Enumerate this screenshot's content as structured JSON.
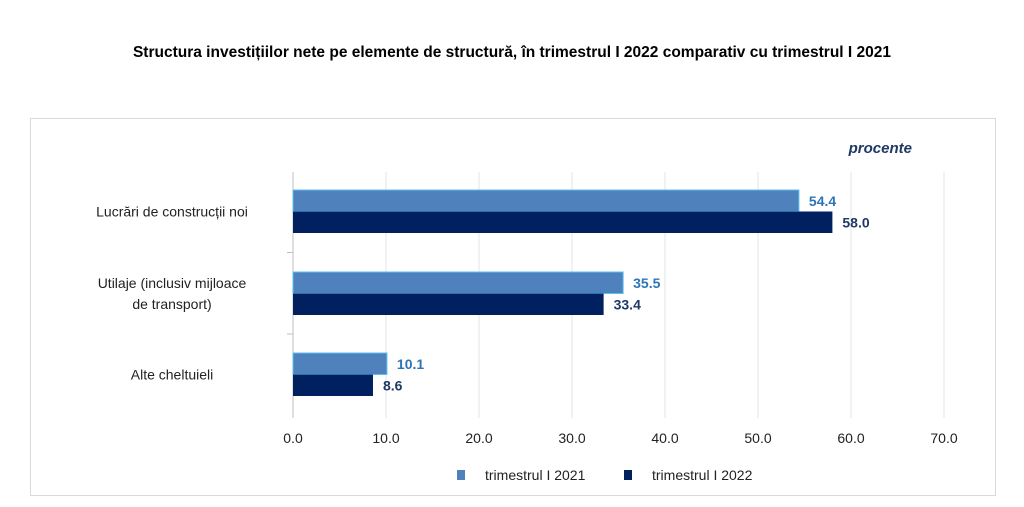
{
  "chart_data": {
    "type": "bar",
    "orientation": "horizontal",
    "title": "Structura investițiilor nete pe elemente de structură, în trimestrul I 2022 comparativ cu trimestrul I 2021",
    "unit_label": "procente",
    "categories": [
      [
        "Lucrări de construcții noi"
      ],
      [
        "Utilaje (inclusiv mijloace",
        "de transport)"
      ],
      [
        "Alte cheltuieli"
      ]
    ],
    "series": [
      {
        "name": "trimestrul I 2021",
        "values": [
          54.4,
          35.5,
          10.1
        ],
        "color": "#4f81bd",
        "label_color": "#2e75b6"
      },
      {
        "name": "trimestrul I 2022",
        "values": [
          58.0,
          33.4,
          8.6
        ],
        "color": "#002060",
        "label_color": "#1f3864"
      }
    ],
    "xlim": [
      0,
      70
    ],
    "ticks": [
      "0.0",
      "10.0",
      "20.0",
      "30.0",
      "40.0",
      "50.0",
      "60.0",
      "70.0"
    ],
    "grid": true,
    "legend": "bottom"
  }
}
